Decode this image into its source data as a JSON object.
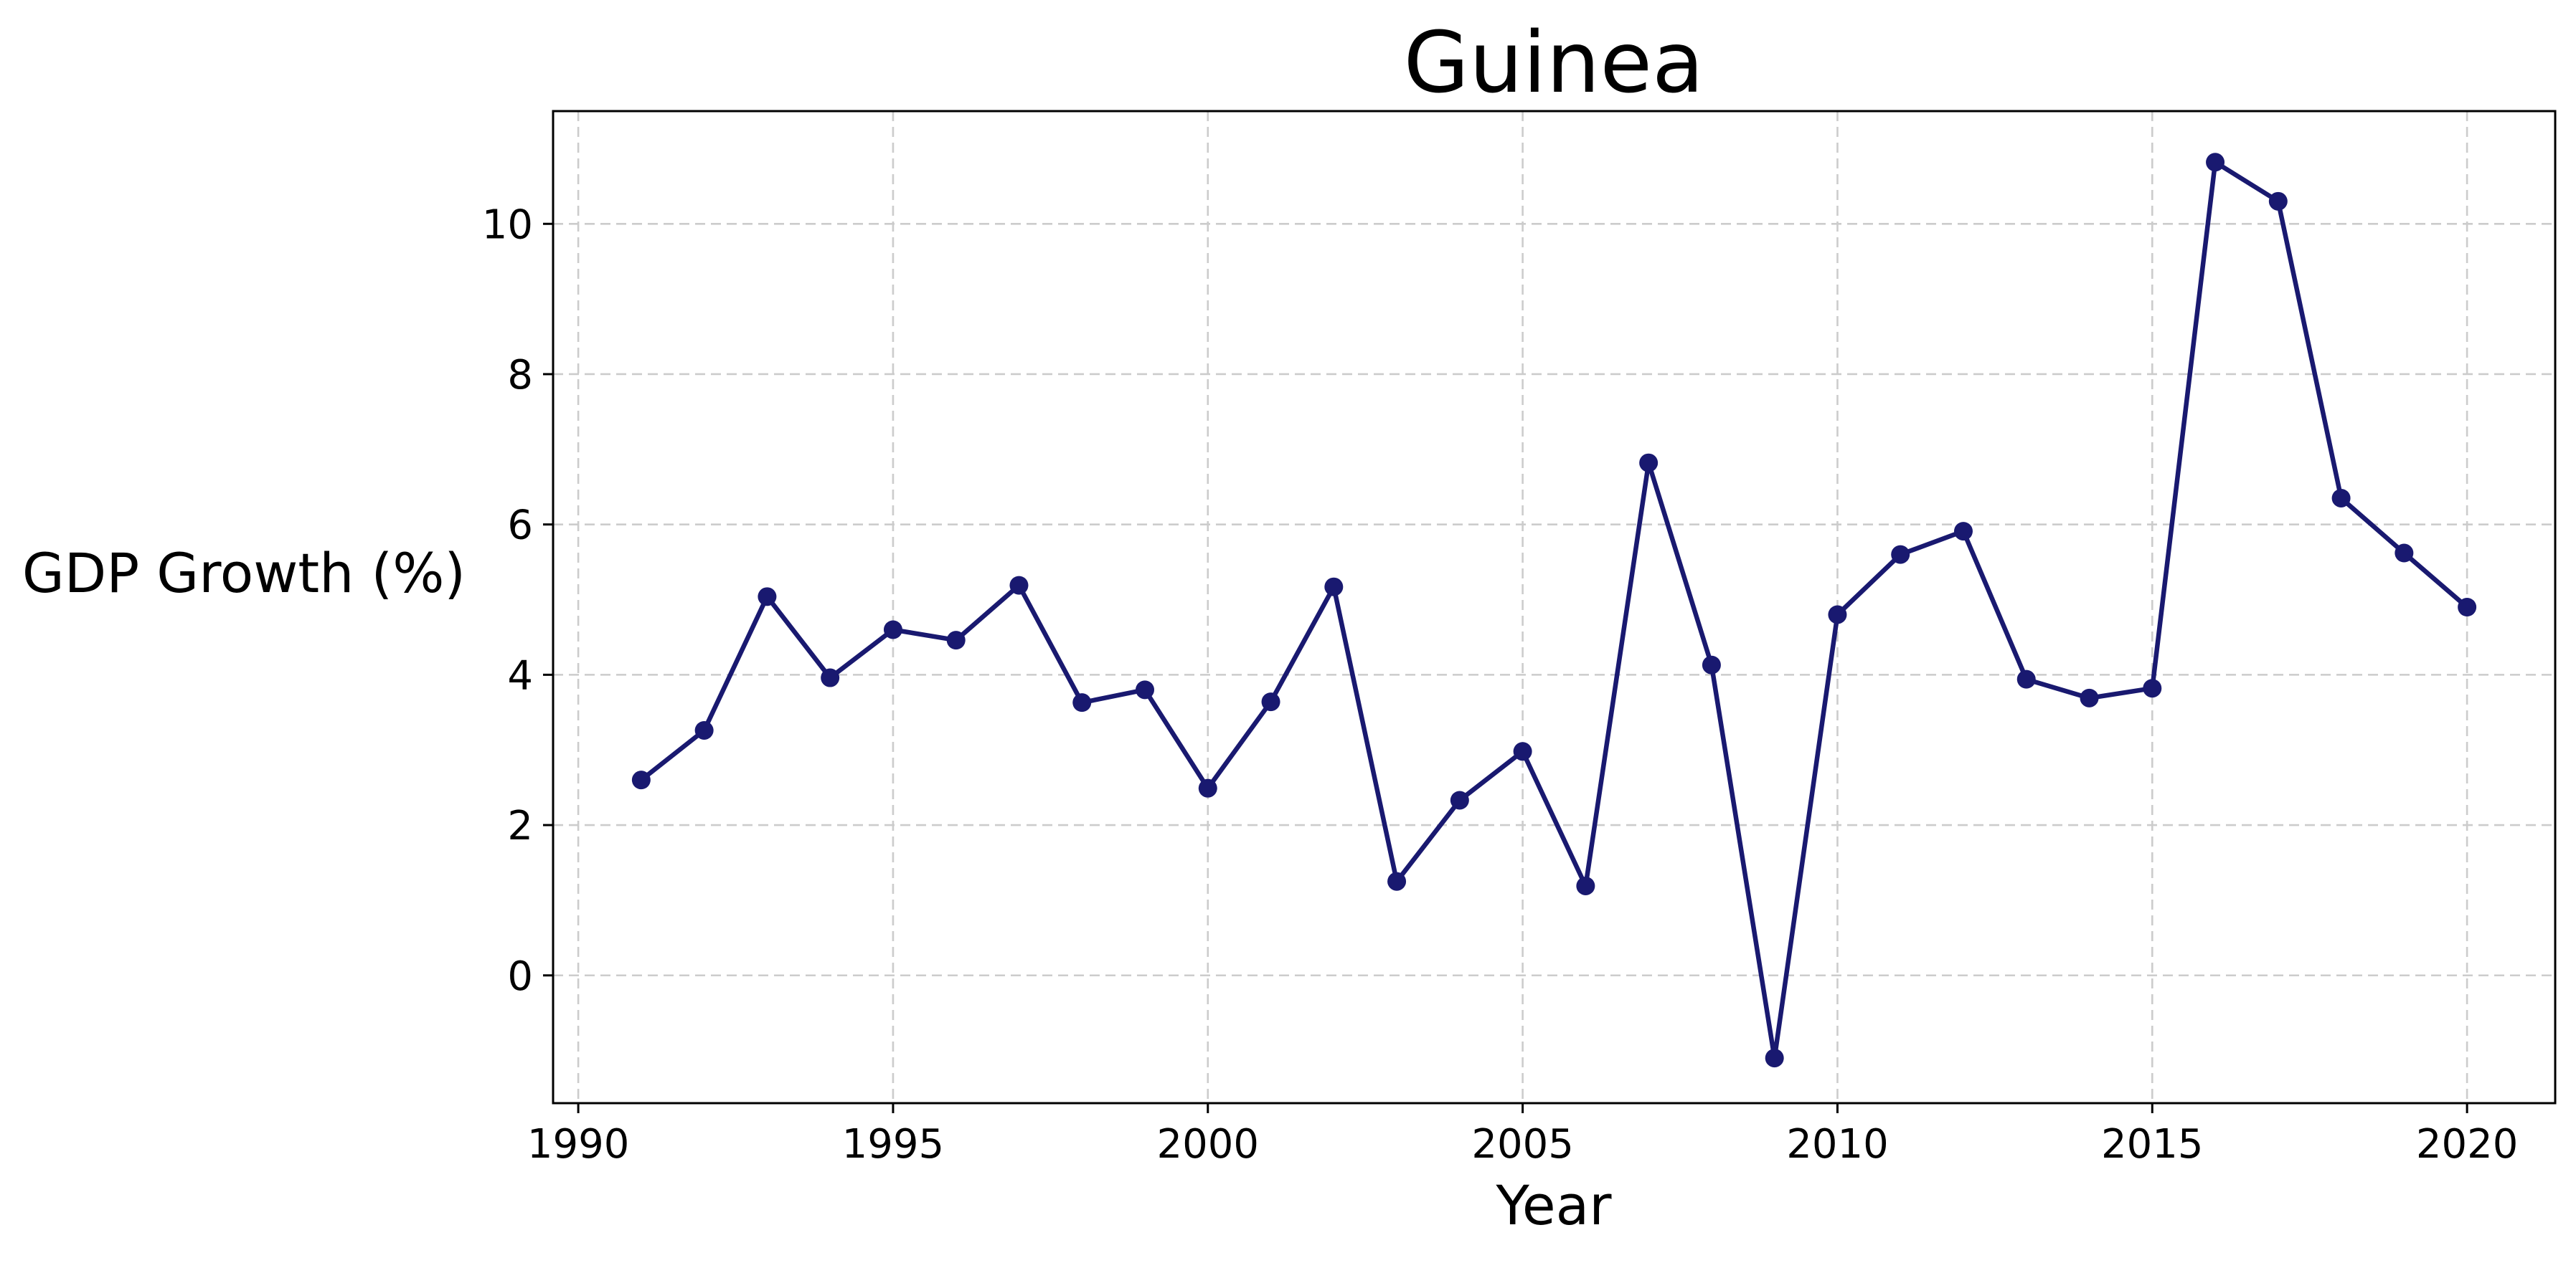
{
  "chart_data": {
    "type": "line",
    "title": "Guinea",
    "xlabel": "Year",
    "ylabel": "GDP Growth (%)",
    "xlim": [
      1989.6,
      2021.4
    ],
    "ylim": [
      -1.7,
      11.5
    ],
    "xticks": [
      1990,
      1995,
      2000,
      2005,
      2010,
      2015,
      2020
    ],
    "yticks": [
      0,
      2,
      4,
      6,
      8,
      10
    ],
    "grid": true,
    "color": "#191970",
    "x": [
      1991,
      1992,
      1993,
      1994,
      1995,
      1996,
      1997,
      1998,
      1999,
      2000,
      2001,
      2002,
      2003,
      2004,
      2005,
      2006,
      2007,
      2008,
      2009,
      2010,
      2011,
      2012,
      2013,
      2014,
      2015,
      2016,
      2017,
      2018,
      2019,
      2020
    ],
    "y": [
      2.6,
      3.26,
      5.04,
      3.96,
      4.6,
      4.46,
      5.19,
      3.63,
      3.8,
      2.49,
      3.64,
      5.17,
      1.25,
      2.33,
      2.98,
      1.19,
      6.82,
      4.13,
      -1.1,
      4.8,
      5.6,
      5.91,
      3.94,
      3.69,
      3.82,
      10.82,
      10.3,
      6.35,
      5.62,
      4.9
    ]
  }
}
